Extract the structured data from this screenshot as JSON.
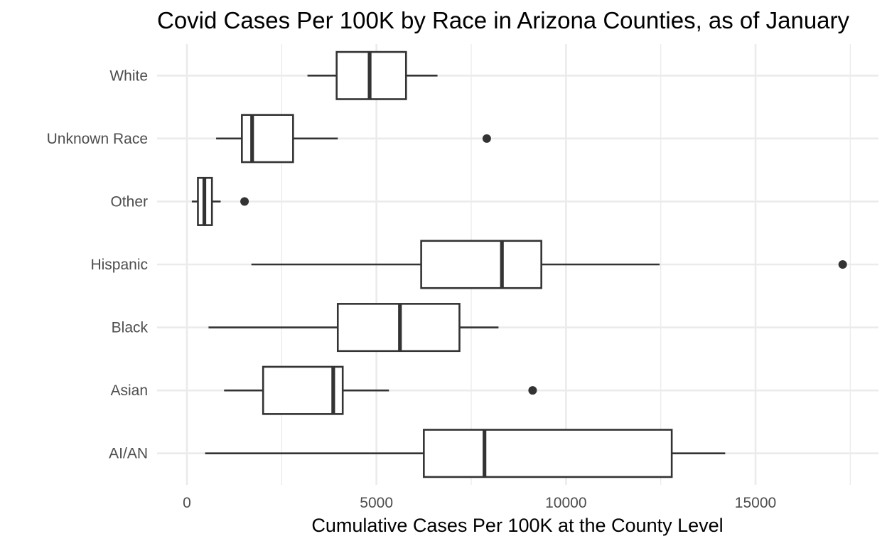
{
  "chart_data": {
    "type": "boxplot",
    "orientation": "horizontal",
    "title": "Covid Cases Per 100K by Race in Arizona Counties, as of January",
    "xlabel": "Cumulative Cases Per 100K at the County Level",
    "ylabel": "",
    "xlim": [
      -1600,
      18200
    ],
    "x_ticks": [
      0,
      5000,
      10000,
      15000
    ],
    "x_tick_labels": [
      "0",
      "5000",
      "10000",
      "15000"
    ],
    "grid": true,
    "categories": [
      "White",
      "Unknown Race",
      "Other",
      "Hispanic",
      "Black",
      "Asian",
      "AI/AN"
    ],
    "boxes": [
      {
        "category": "White",
        "whisker_low": 3180,
        "q1": 3950,
        "median": 4820,
        "q3": 5780,
        "whisker_high": 6610,
        "outliers": []
      },
      {
        "category": "Unknown Race",
        "whisker_low": 770,
        "q1": 1450,
        "median": 1720,
        "q3": 2800,
        "whisker_high": 3980,
        "outliers": [
          7910
        ]
      },
      {
        "category": "Other",
        "whisker_low": 130,
        "q1": 290,
        "median": 460,
        "q3": 660,
        "whisker_high": 890,
        "outliers": [
          1520
        ]
      },
      {
        "category": "Hispanic",
        "whisker_low": 1700,
        "q1": 6180,
        "median": 8310,
        "q3": 9350,
        "whisker_high": 12470,
        "outliers": [
          17300
        ]
      },
      {
        "category": "Black",
        "whisker_low": 570,
        "q1": 3980,
        "median": 5620,
        "q3": 7190,
        "whisker_high": 8220,
        "outliers": []
      },
      {
        "category": "Asian",
        "whisker_low": 980,
        "q1": 2010,
        "median": 3860,
        "q3": 4110,
        "whisker_high": 5330,
        "outliers": [
          9120
        ]
      },
      {
        "category": "AI/AN",
        "whisker_low": 480,
        "q1": 6250,
        "median": 7850,
        "q3": 12790,
        "whisker_high": 14200,
        "outliers": []
      }
    ],
    "colors": {
      "box_stroke": "#333333",
      "box_fill": "#ffffff",
      "grid": "#ebebeb",
      "outlier": "#333333"
    }
  }
}
